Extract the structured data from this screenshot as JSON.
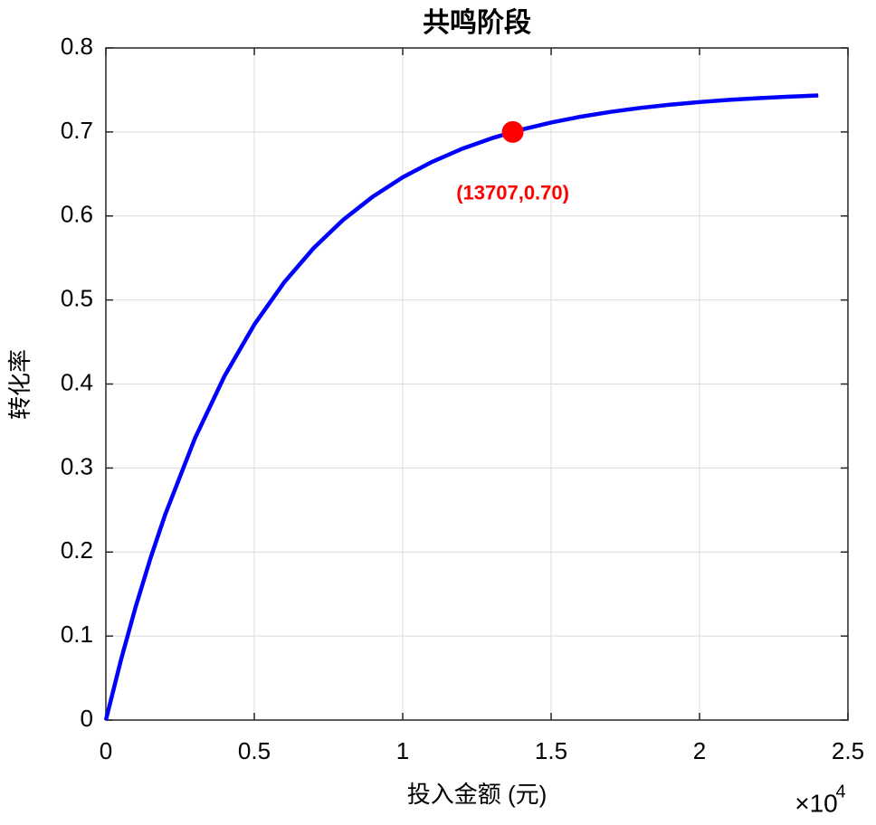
{
  "chart_data": {
    "type": "line",
    "title": "共鸣阶段",
    "x_label": "投入金额 (元)",
    "y_label": "转化率",
    "x_exponent": {
      "base": "×10",
      "power": "4"
    },
    "x": [
      0,
      500,
      1000,
      1500,
      2000,
      3000,
      4000,
      5000,
      6000,
      7000,
      8000,
      9000,
      10000,
      11000,
      12000,
      13000,
      14000,
      15000,
      16000,
      17000,
      18000,
      19000,
      20000,
      21000,
      22000,
      23000,
      24000
    ],
    "series": [
      {
        "color": "#0000ff",
        "values": [
          0,
          0.0705,
          0.1344,
          0.1923,
          0.2448,
          0.3353,
          0.4097,
          0.4707,
          0.5207,
          0.5618,
          0.5956,
          0.6232,
          0.646,
          0.6646,
          0.68,
          0.6925,
          0.7028,
          0.7112,
          0.7182,
          0.7239,
          0.7286,
          0.7324,
          0.7356,
          0.7382,
          0.7403,
          0.742,
          0.7435
        ]
      }
    ],
    "highlight": {
      "x": 13707,
      "y": 0.7,
      "label": "(13707,0.70)",
      "color": "#ff0000"
    },
    "xlim": [
      0,
      25000
    ],
    "xticks": [
      0,
      {
        "value": 5000,
        "label": "0.5"
      },
      {
        "value": 10000,
        "label": "1"
      },
      {
        "value": 15000,
        "label": "1.5"
      },
      {
        "value": 20000,
        "label": "2"
      },
      {
        "value": 25000,
        "label": "2.5"
      }
    ],
    "ylim": [
      0,
      0.8
    ],
    "yticks": [
      0,
      0.1,
      0.2,
      0.3,
      0.4,
      0.5,
      0.6,
      0.7,
      0.8
    ],
    "grid": true
  }
}
